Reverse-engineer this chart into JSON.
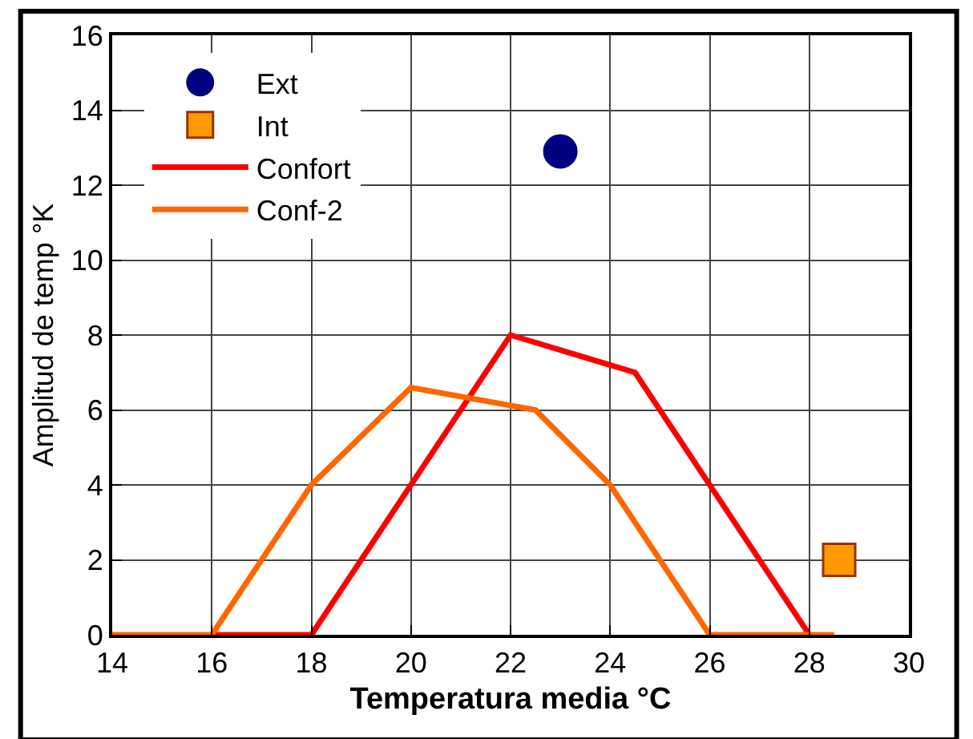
{
  "chart_data": {
    "type": "line",
    "xlabel": "Temperatura media °C",
    "ylabel": "Amplitud de temp °K",
    "xlim": [
      14,
      30
    ],
    "xticks": [
      14,
      16,
      18,
      20,
      22,
      24,
      26,
      28,
      30
    ],
    "ylim": [
      0,
      16
    ],
    "yticks": [
      0,
      2,
      4,
      6,
      8,
      10,
      12,
      14,
      16
    ],
    "grid": true,
    "legend": "top left",
    "series": [
      {
        "name": "Ext",
        "type": "scatter",
        "marker": "circle",
        "color": "#000080",
        "x": [
          23
        ],
        "values": [
          12.9
        ]
      },
      {
        "name": "Int",
        "type": "scatter",
        "marker": "square",
        "color": "#ff9900",
        "x": [
          28.6
        ],
        "values": [
          2.0
        ]
      },
      {
        "name": "Confort",
        "color": "#ff0000",
        "x": [
          16,
          18,
          22,
          24.5,
          28
        ],
        "values": [
          0,
          0,
          8,
          7,
          0
        ]
      },
      {
        "name": "Conf-2",
        "color": "#ff6600",
        "x": [
          14,
          16,
          18,
          20,
          22.5,
          24,
          26,
          28.5
        ],
        "values": [
          0,
          0,
          4,
          6.6,
          6,
          4,
          0,
          0
        ]
      }
    ]
  }
}
